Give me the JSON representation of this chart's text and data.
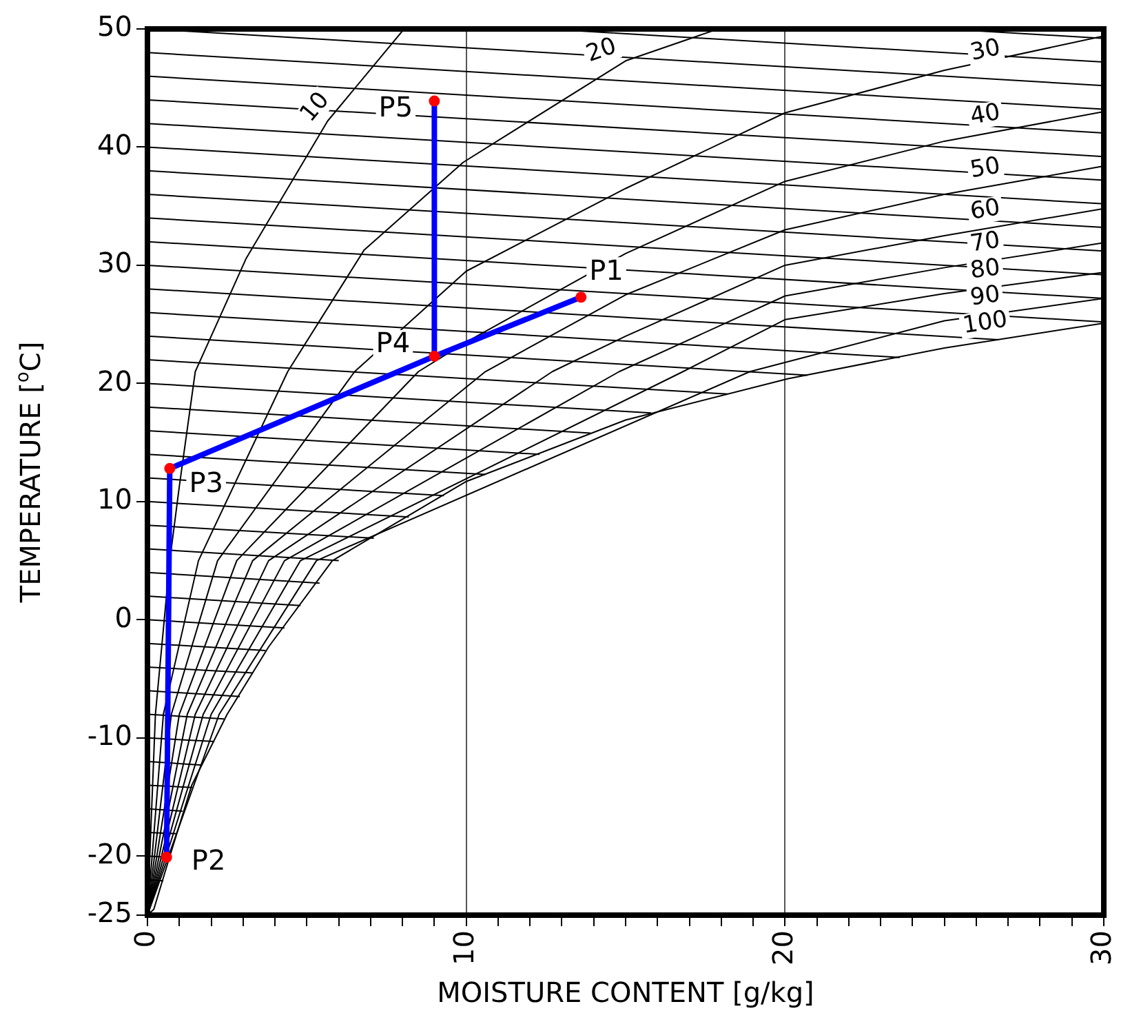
{
  "chart_data": {
    "type": "line",
    "xlabel": "MOISTURE CONTENT [g/kg]",
    "ylabel": "TEMPERATURE [$^{o}$C]",
    "xlim": [
      0,
      30
    ],
    "xticks": [
      0,
      {
        "value": 1,
        "label": null
      },
      {
        "value": 2,
        "label": null
      },
      {
        "value": 3,
        "label": null
      },
      {
        "value": 4,
        "label": null
      },
      {
        "value": 5,
        "label": null
      },
      {
        "value": 6,
        "label": null
      },
      {
        "value": 7,
        "label": null
      },
      {
        "value": 8,
        "label": null
      },
      {
        "value": 9,
        "label": null
      },
      10,
      {
        "value": 11,
        "label": null
      },
      {
        "value": 12,
        "label": null
      },
      {
        "value": 13,
        "label": null
      },
      {
        "value": 14,
        "label": null
      },
      {
        "value": 15,
        "label": null
      },
      {
        "value": 16,
        "label": null
      },
      {
        "value": 17,
        "label": null
      },
      {
        "value": 18,
        "label": null
      },
      {
        "value": 19,
        "label": null
      },
      20,
      {
        "value": 21,
        "label": null
      },
      {
        "value": 22,
        "label": null
      },
      {
        "value": 23,
        "label": null
      },
      {
        "value": 24,
        "label": null
      },
      {
        "value": 25,
        "label": null
      },
      {
        "value": 26,
        "label": null
      },
      {
        "value": 27,
        "label": null
      },
      {
        "value": 28,
        "label": null
      },
      {
        "value": 29,
        "label": null
      },
      30
    ],
    "ylim": [
      -25,
      50
    ],
    "yticks": [
      -25,
      -20,
      -10,
      0,
      10,
      20,
      30,
      40,
      50
    ],
    "grid": "x",
    "legend": false,
    "annotations": [
      {
        "text": "P1",
        "x": 13.6,
        "y": 27.3
      },
      {
        "text": "P2",
        "x": 0.6,
        "y": -20.1
      },
      {
        "text": "P3",
        "x": 0.7,
        "y": 12.8
      },
      {
        "text": "P4",
        "x": 9.0,
        "y": 22.3
      },
      {
        "text": "P5",
        "x": 9.0,
        "y": 43.9
      }
    ],
    "series": [
      {
        "type": "line",
        "color": "#000000",
        "x": [
          25,
          30
        ],
        "values": [
          50,
          49.2
        ]
      },
      {
        "type": "line",
        "color": "#000000",
        "x": [
          12.5,
          30
        ],
        "values": [
          50,
          47.2
        ]
      },
      {
        "type": "line",
        "color": "#000000",
        "x": [
          0,
          30
        ],
        "values": [
          50,
          45.2
        ]
      },
      {
        "type": "line",
        "color": "#000000",
        "x": [
          0,
          30
        ],
        "values": [
          48,
          43.2
        ]
      },
      {
        "type": "line",
        "color": "#000000",
        "x": [
          0,
          30
        ],
        "values": [
          46,
          41.2
        ]
      },
      {
        "type": "line",
        "color": "#000000",
        "x": [
          0,
          30
        ],
        "values": [
          44,
          39.2
        ]
      },
      {
        "type": "line",
        "color": "#000000",
        "x": [
          0,
          30
        ],
        "values": [
          42,
          37.2
        ]
      },
      {
        "type": "line",
        "color": "#000000",
        "x": [
          0,
          30
        ],
        "values": [
          40,
          35.2
        ]
      },
      {
        "type": "line",
        "color": "#000000",
        "x": [
          0,
          30
        ],
        "values": [
          38,
          33.2
        ]
      },
      {
        "type": "line",
        "color": "#000000",
        "x": [
          0,
          30
        ],
        "values": [
          36,
          31.2
        ]
      },
      {
        "type": "line",
        "color": "#000000",
        "x": [
          0,
          30
        ],
        "values": [
          34,
          29.2
        ]
      },
      {
        "type": "line",
        "color": "#000000",
        "x": [
          0,
          30
        ],
        "values": [
          32,
          27.2
        ]
      },
      {
        "type": "line",
        "color": "#000000",
        "x": [
          0,
          30
        ],
        "values": [
          30,
          25.2
        ]
      },
      {
        "type": "line",
        "color": "#000000",
        "x": [
          0,
          26.7
        ],
        "values": [
          28,
          23.7
        ]
      },
      {
        "type": "line",
        "color": "#000000",
        "x": [
          0,
          23.6
        ],
        "values": [
          26,
          22.2
        ]
      },
      {
        "type": "line",
        "color": "#000000",
        "x": [
          0,
          20.7
        ],
        "values": [
          24,
          20.7
        ]
      },
      {
        "type": "line",
        "color": "#000000",
        "x": [
          0,
          18.2
        ],
        "values": [
          22,
          19.1
        ]
      },
      {
        "type": "line",
        "color": "#000000",
        "x": [
          0,
          15.8
        ],
        "values": [
          20,
          17.5
        ]
      },
      {
        "type": "line",
        "color": "#000000",
        "x": [
          0,
          13.9
        ],
        "values": [
          18,
          15.8
        ]
      },
      {
        "type": "line",
        "color": "#000000",
        "x": [
          0,
          12.3
        ],
        "values": [
          16,
          14.0
        ]
      },
      {
        "type": "line",
        "color": "#000000",
        "x": [
          0,
          10.6
        ],
        "values": [
          14,
          12.3
        ]
      },
      {
        "type": "line",
        "color": "#000000",
        "x": [
          0,
          9.3
        ],
        "values": [
          12,
          10.5
        ]
      },
      {
        "type": "line",
        "color": "#000000",
        "x": [
          0,
          8.2
        ],
        "values": [
          10,
          8.7
        ]
      },
      {
        "type": "line",
        "color": "#000000",
        "x": [
          0,
          7.1
        ],
        "values": [
          8,
          6.9
        ]
      },
      {
        "type": "line",
        "color": "#000000",
        "x": [
          0,
          6.0
        ],
        "values": [
          6,
          5.0
        ]
      },
      {
        "type": "line",
        "color": "#000000",
        "x": [
          0,
          5.4
        ],
        "values": [
          4,
          3.1
        ]
      },
      {
        "type": "line",
        "color": "#000000",
        "x": [
          0,
          4.8
        ],
        "values": [
          2,
          1.2
        ]
      },
      {
        "type": "line",
        "color": "#000000",
        "x": [
          0,
          4.3
        ],
        "values": [
          0,
          -0.7
        ]
      },
      {
        "type": "line",
        "color": "#000000",
        "x": [
          0,
          3.7
        ],
        "values": [
          -2,
          -2.6
        ]
      },
      {
        "type": "line",
        "color": "#000000",
        "x": [
          0,
          3.3
        ],
        "values": [
          -4,
          -4.5
        ]
      },
      {
        "type": "line",
        "color": "#000000",
        "x": [
          0,
          2.9
        ],
        "values": [
          -6,
          -6.5
        ]
      },
      {
        "type": "line",
        "color": "#000000",
        "x": [
          0,
          2.4
        ],
        "values": [
          -8,
          -8.4
        ]
      },
      {
        "type": "line",
        "color": "#000000",
        "x": [
          0,
          2.1
        ],
        "values": [
          -10,
          -10.3
        ]
      },
      {
        "type": "line",
        "color": "#000000",
        "x": [
          0,
          1.7
        ],
        "values": [
          -12,
          -12.3
        ]
      },
      {
        "type": "line",
        "color": "#000000",
        "x": [
          0,
          1.4
        ],
        "values": [
          -14,
          -14.2
        ]
      },
      {
        "type": "line",
        "color": "#000000",
        "x": [
          0,
          1.1
        ],
        "values": [
          -16,
          -16.2
        ]
      },
      {
        "type": "line",
        "color": "#000000",
        "x": [
          0,
          0.9
        ],
        "values": [
          -18,
          -18.1
        ]
      },
      {
        "type": "line",
        "color": "#000000",
        "x": [
          0,
          0.7
        ],
        "values": [
          -20,
          -20.1
        ]
      },
      {
        "type": "line",
        "color": "#000000",
        "x": [
          0,
          0.5
        ],
        "values": [
          -22,
          -22.1
        ]
      },
      {
        "type": "line",
        "name": "10",
        "color": "#000000",
        "x": [
          0,
          0.25,
          0.7,
          1.0,
          1.5,
          3.1,
          5.65,
          8.05
        ],
        "values": [
          -25,
          -8,
          5,
          11.3,
          21,
          30.6,
          42.2,
          50
        ]
      },
      {
        "type": "line",
        "name": "20",
        "color": "#000000",
        "x": [
          0,
          0.5,
          1.6,
          4.4,
          6.8,
          9.9,
          15,
          17.9
        ],
        "values": [
          -25,
          -8,
          5,
          21,
          31.3,
          38.7,
          47.3,
          50
        ]
      },
      {
        "type": "line",
        "name": "30",
        "color": "#000000",
        "x": [
          0,
          0.75,
          2.2,
          6.5,
          10,
          15,
          20,
          25,
          30
        ],
        "values": [
          -25,
          -8,
          5,
          21,
          29.5,
          36.5,
          42.9,
          46.5,
          49.4
        ]
      },
      {
        "type": "line",
        "name": "40",
        "color": "#000000",
        "x": [
          0,
          1.0,
          2.8,
          8.5,
          10,
          15,
          20,
          25,
          30
        ],
        "values": [
          -25,
          -8,
          5,
          21,
          23.5,
          31,
          37.1,
          40.5,
          43
        ]
      },
      {
        "type": "line",
        "name": "50",
        "color": "#000000",
        "x": [
          0,
          1.25,
          3.3,
          10.6,
          15,
          20,
          25,
          30
        ],
        "values": [
          -25,
          -8,
          5,
          21,
          27.5,
          33,
          36,
          38.4
        ]
      },
      {
        "type": "line",
        "name": "60",
        "color": "#000000",
        "x": [
          0,
          1.5,
          3.8,
          12.7,
          15,
          20,
          25,
          30
        ],
        "values": [
          -25,
          -8,
          5,
          21,
          24,
          30,
          32.5,
          34.8
        ]
      },
      {
        "type": "line",
        "name": "70",
        "color": "#000000",
        "x": [
          0,
          1.75,
          4.3,
          14.8,
          20,
          25,
          30
        ],
        "values": [
          -25,
          -8,
          5,
          21,
          27.4,
          29.8,
          31.9
        ]
      },
      {
        "type": "line",
        "name": "80",
        "color": "#000000",
        "x": [
          0,
          2.0,
          4.8,
          16.8,
          20,
          25,
          30
        ],
        "values": [
          -25,
          -8,
          5,
          21,
          25.4,
          27.6,
          29.4
        ]
      },
      {
        "type": "line",
        "name": "90",
        "color": "#000000",
        "x": [
          0,
          2.25,
          5.3,
          18.9,
          25,
          30
        ],
        "values": [
          -25,
          -8,
          5,
          21,
          25.3,
          27.2
        ]
      },
      {
        "type": "line",
        "name": "100",
        "color": "#000000",
        "x": [
          0,
          0.2,
          0.68,
          1.39,
          2.5,
          3.8,
          5.8,
          10,
          15,
          20.1,
          25,
          30
        ],
        "values": [
          -25,
          -24.5,
          -20.2,
          -14,
          -8,
          -2.3,
          5,
          11.7,
          16.9,
          20.4,
          23,
          25.1
        ]
      },
      {
        "type": "line",
        "color": "#0000ff",
        "x": [
          0.6,
          0.7,
          9.0,
          13.6
        ],
        "values": [
          -20.1,
          12.8,
          22.3,
          27.3
        ]
      },
      {
        "type": "line",
        "color": "#0000ff",
        "x": [
          9.0,
          9.0
        ],
        "values": [
          22.3,
          43.9
        ]
      },
      {
        "type": "scatter",
        "color": "#ff0000",
        "marker": "circle",
        "x": [
          13.6,
          0.6,
          0.7,
          9.0,
          9.0
        ],
        "values": [
          27.3,
          -20.1,
          12.8,
          22.3,
          43.9
        ]
      }
    ]
  }
}
